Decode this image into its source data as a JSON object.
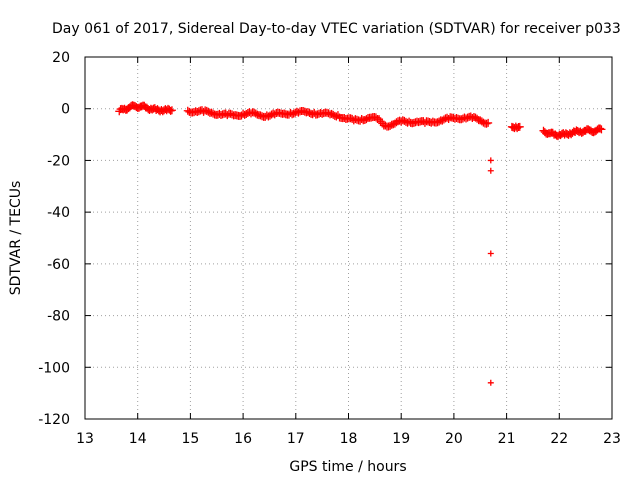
{
  "chart_data": {
    "type": "scatter",
    "title": "Day 061 of 2017, Sidereal Day-to-day VTEC variation (SDTVAR) for receiver p033",
    "xlabel": "GPS time / hours",
    "ylabel": "SDTVAR / TECUs",
    "xlim": [
      13,
      23
    ],
    "ylim": [
      -120,
      20
    ],
    "xticks": [
      13,
      14,
      15,
      16,
      17,
      18,
      19,
      20,
      21,
      22,
      23
    ],
    "yticks": [
      20,
      0,
      -20,
      -40,
      -60,
      -80,
      -100,
      -120
    ],
    "grid": true,
    "marker": "+",
    "series_color": "#ff0000",
    "series": [
      {
        "name": "SDTVAR",
        "segments": [
          {
            "x": [
              13.65,
              13.75,
              13.85,
              13.95,
              14.05,
              14.15,
              14.25,
              14.35,
              14.45,
              14.55,
              14.65
            ],
            "y": [
              -1.0,
              0.0,
              0.5,
              1.0,
              0.8,
              0.5,
              0.0,
              -0.5,
              -0.5,
              -0.6,
              -0.6
            ]
          },
          {
            "x": [
              14.95,
              15.1,
              15.25,
              15.4,
              15.55,
              15.7,
              15.85,
              16.0,
              16.15,
              16.3,
              16.45,
              16.6,
              16.75,
              16.9,
              17.05,
              17.2,
              17.35,
              17.5,
              17.65,
              17.8,
              17.95,
              18.1,
              18.25,
              18.4,
              18.55,
              18.7,
              18.85,
              19.0,
              19.15,
              19.3,
              19.45,
              19.6,
              19.75,
              19.9,
              20.05,
              20.2,
              20.35,
              20.5,
              20.65
            ],
            "y": [
              -0.8,
              -1.0,
              -1.2,
              -1.5,
              -2.0,
              -2.5,
              -2.5,
              -2.0,
              -1.8,
              -2.5,
              -2.6,
              -2.2,
              -2.0,
              -1.6,
              -1.5,
              -1.4,
              -1.6,
              -2.0,
              -2.2,
              -2.5,
              -4.0,
              -4.5,
              -4.0,
              -3.5,
              -4.0,
              -6.5,
              -6.0,
              -5.0,
              -5.0,
              -5.0,
              -5.5,
              -5.0,
              -4.5,
              -4.0,
              -3.6,
              -3.4,
              -3.6,
              -4.5,
              -5.5
            ]
          },
          {
            "x": [
              21.1,
              21.15,
              21.2,
              21.25
            ],
            "y": [
              -7.0,
              -7.5,
              -7.5,
              -7.0
            ]
          },
          {
            "x": [
              21.7,
              21.8,
              21.9,
              22.0,
              22.1,
              22.2,
              22.3,
              22.4,
              22.5,
              22.6,
              22.7,
              22.8
            ],
            "y": [
              -8.5,
              -9.5,
              -10.0,
              -10.0,
              -10.0,
              -9.5,
              -9.0,
              -8.8,
              -8.5,
              -8.5,
              -8.5,
              -8.0
            ]
          },
          {
            "x": [
              20.7,
              20.7,
              20.7,
              20.7
            ],
            "y": [
              -20,
              -24,
              -56,
              -106
            ]
          }
        ]
      }
    ]
  }
}
